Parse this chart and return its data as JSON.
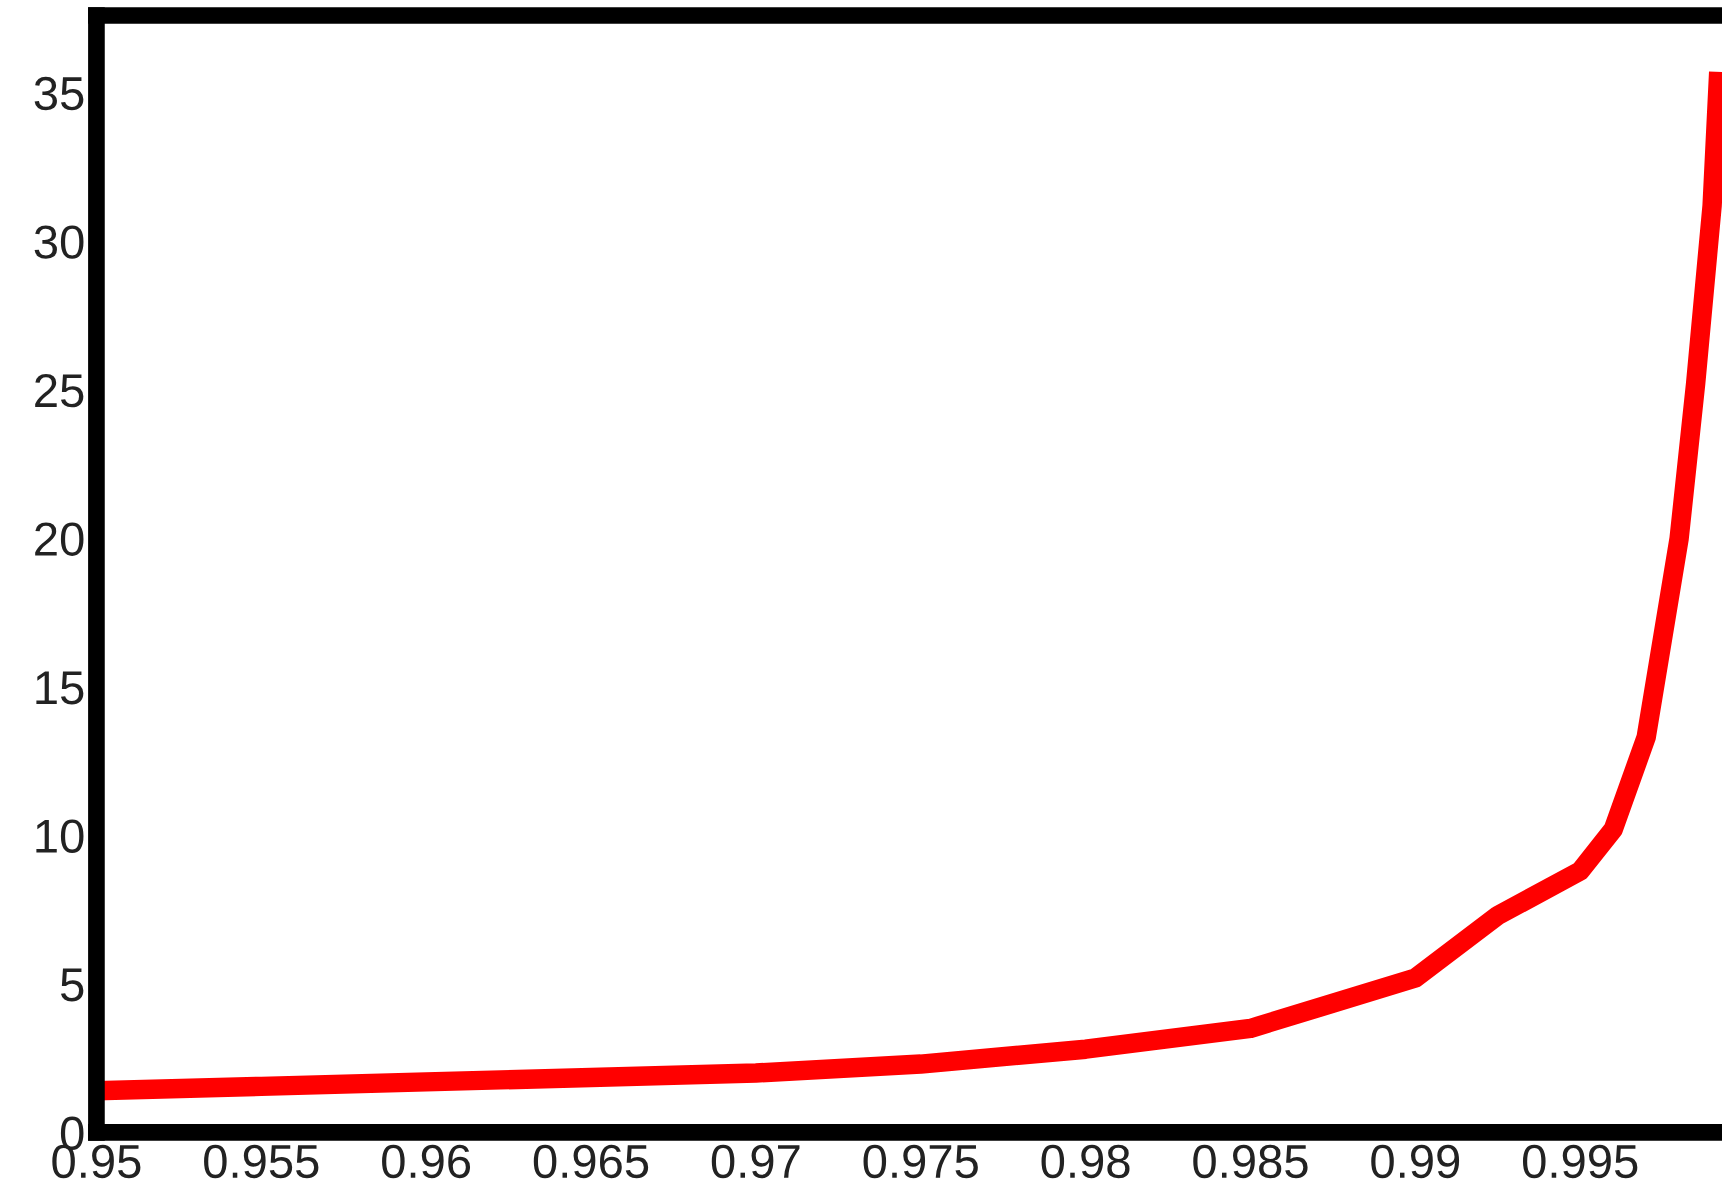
{
  "chart_data": {
    "type": "line",
    "x": [
      0.95,
      0.955,
      0.96,
      0.965,
      0.97,
      0.975,
      0.98,
      0.985,
      0.99,
      0.9925,
      0.995,
      0.996,
      0.997,
      0.998,
      0.9985,
      0.999,
      0.9992
    ],
    "series": [
      {
        "color": "#ff0000",
        "values": [
          1.4,
          1.55,
          1.7,
          1.85,
          2.0,
          2.3,
          2.8,
          3.5,
          5.2,
          7.3,
          8.8,
          10.2,
          13.3,
          20,
          25.2,
          31.2,
          35.7
        ]
      }
    ],
    "xlim": [
      0.95,
      0.9993
    ],
    "ylim": [
      0,
      37.6
    ],
    "xticks": [
      0.95,
      0.955,
      0.96,
      0.965,
      0.97,
      0.975,
      0.98,
      0.985,
      0.99,
      0.995
    ],
    "yticks": [
      0,
      5,
      10,
      15,
      20,
      25,
      30,
      35
    ],
    "grid": false,
    "legend": false,
    "marker": "none",
    "line_style": "solid"
  }
}
